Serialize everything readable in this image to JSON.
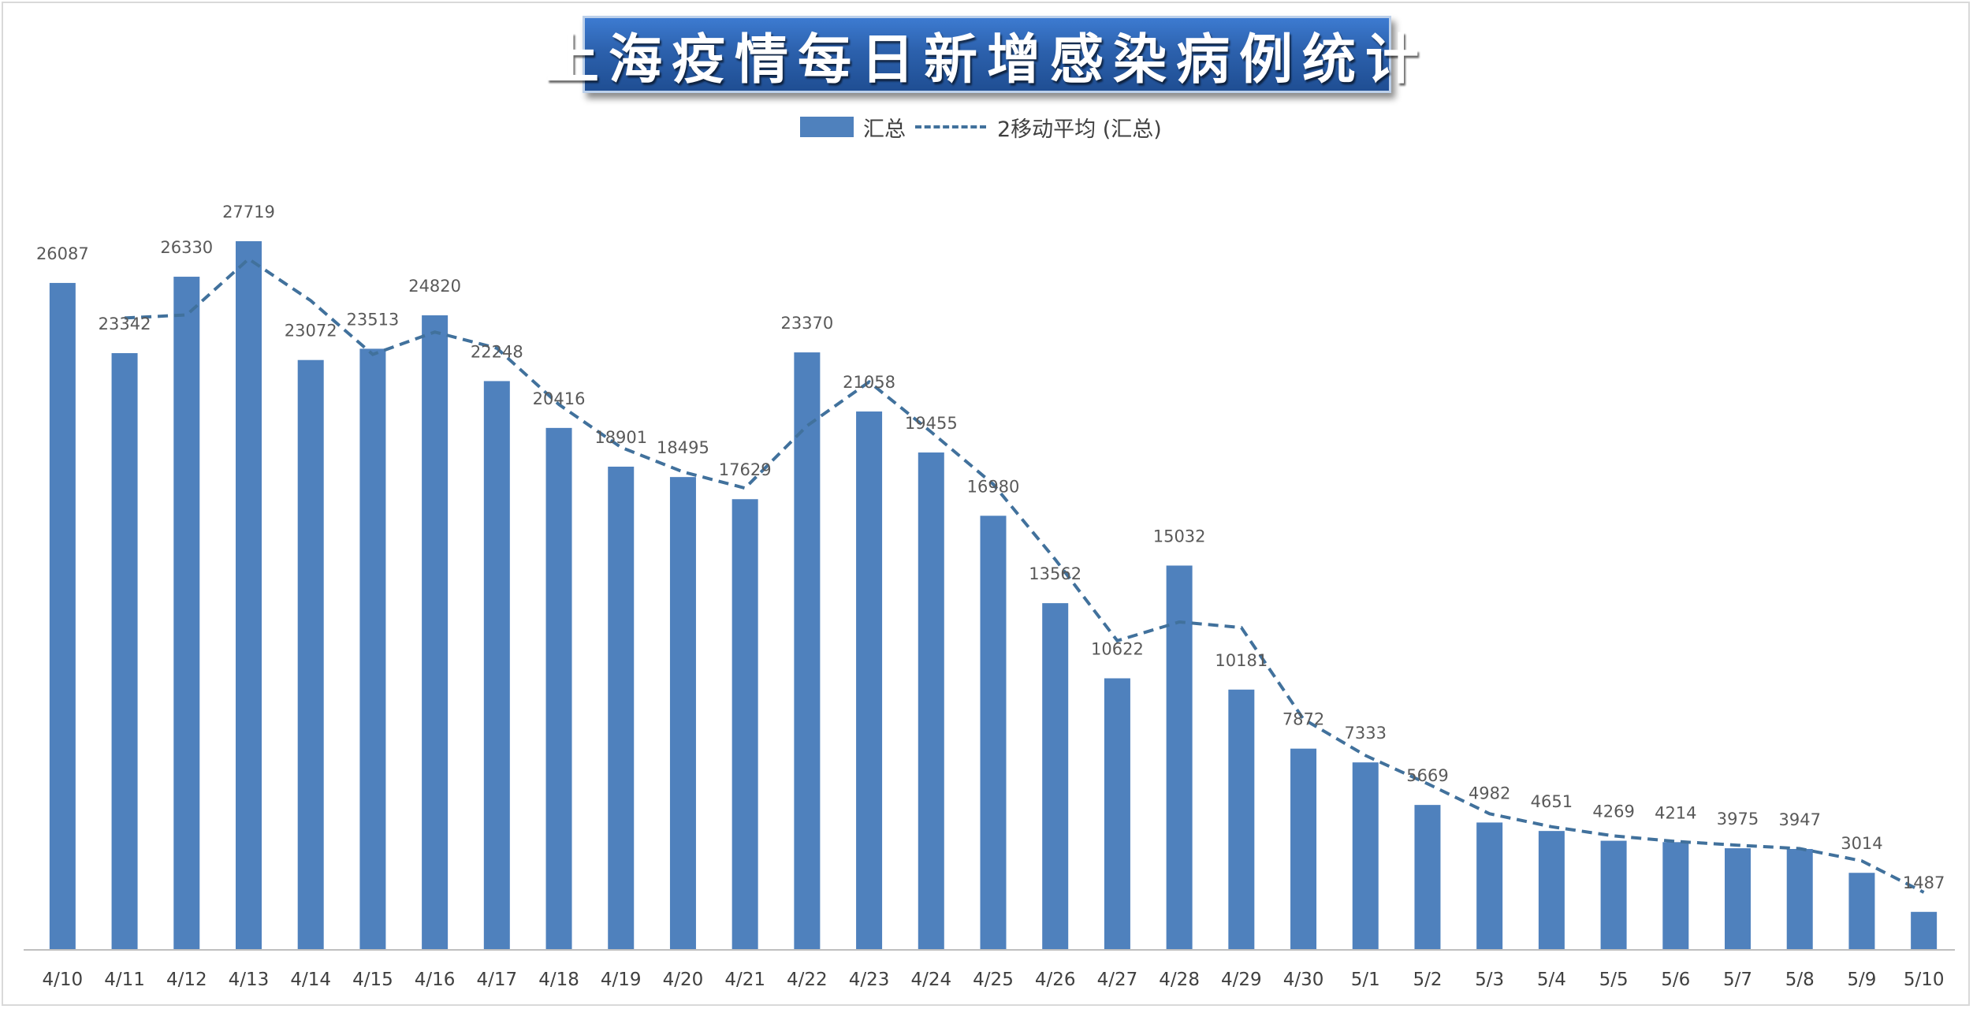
{
  "chart_data": {
    "type": "bar",
    "title": "上海疫情每日新增感染病例统计",
    "xlabel": "",
    "ylabel": "",
    "ylim": [
      0,
      30000
    ],
    "legend_position": "top",
    "grid": false,
    "categories": [
      "4/10",
      "4/11",
      "4/12",
      "4/13",
      "4/14",
      "4/15",
      "4/16",
      "4/17",
      "4/18",
      "4/19",
      "4/20",
      "4/21",
      "4/22",
      "4/23",
      "4/24",
      "4/25",
      "4/26",
      "4/27",
      "4/28",
      "4/29",
      "4/30",
      "5/1",
      "5/2",
      "5/3",
      "5/4",
      "5/5",
      "5/6",
      "5/7",
      "5/8",
      "5/9",
      "5/10"
    ],
    "series": [
      {
        "name": "汇总",
        "type": "bar",
        "color": "#4f81bd",
        "values": [
          26087,
          23342,
          26330,
          27719,
          23072,
          23513,
          24820,
          22248,
          20416,
          18901,
          18495,
          17629,
          23370,
          21058,
          19455,
          16980,
          13562,
          10622,
          15032,
          10181,
          7872,
          7333,
          5669,
          4982,
          4651,
          4269,
          4214,
          3975,
          3947,
          3014,
          1487
        ]
      },
      {
        "name": "2移动平均 (汇总)",
        "type": "line",
        "style": "dashed",
        "color": "#41719c",
        "values": [
          null,
          24714.5,
          24836,
          27024.5,
          25395.5,
          23292.5,
          24166.5,
          23534,
          21332,
          19658.5,
          18698,
          18062,
          20499.5,
          22214,
          20256.5,
          18217.5,
          15271,
          12092,
          12827,
          12606.5,
          9026.5,
          7602.5,
          6501,
          5325.5,
          4816.5,
          4460,
          4241.5,
          4094.5,
          3961,
          3480.5,
          2250.5
        ]
      }
    ]
  }
}
